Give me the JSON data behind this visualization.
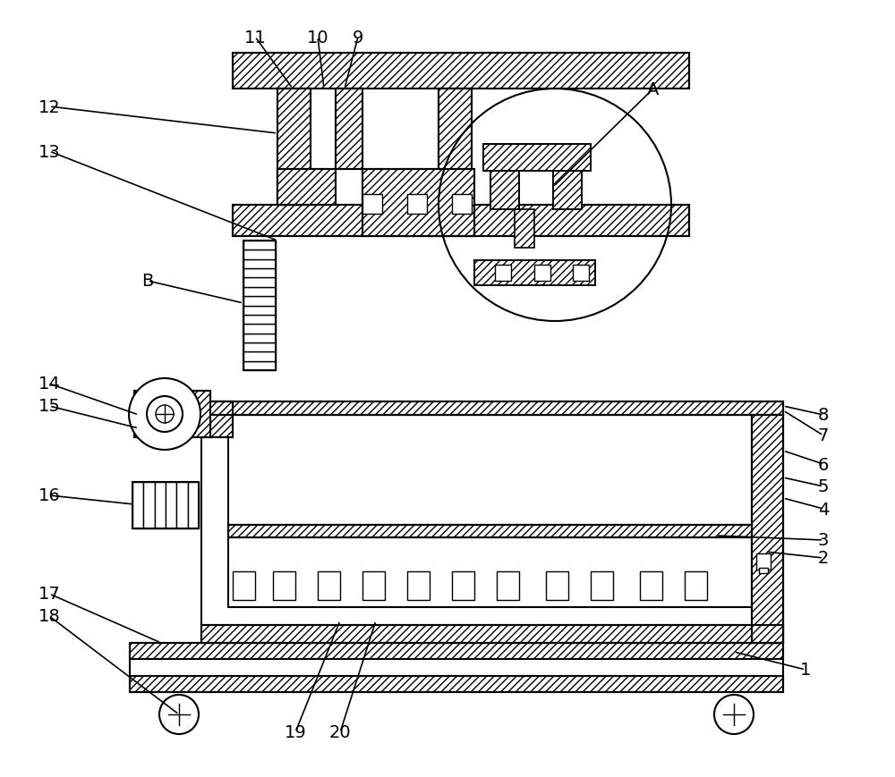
{
  "background_color": "#ffffff",
  "line_color": "#000000",
  "label_fontsize": 14,
  "leaders": [
    [
      "8",
      920,
      405,
      875,
      415
    ],
    [
      "7",
      920,
      382,
      875,
      410
    ],
    [
      "6",
      920,
      350,
      875,
      365
    ],
    [
      "5",
      920,
      325,
      875,
      335
    ],
    [
      "4",
      920,
      300,
      875,
      312
    ],
    [
      "3",
      920,
      265,
      800,
      270
    ],
    [
      "2",
      920,
      245,
      855,
      252
    ],
    [
      "1",
      900,
      120,
      820,
      140
    ],
    [
      "9",
      400,
      828,
      385,
      770
    ],
    [
      "10",
      355,
      828,
      362,
      770
    ],
    [
      "11",
      285,
      828,
      327,
      770
    ],
    [
      "12",
      55,
      750,
      310,
      720
    ],
    [
      "13",
      55,
      700,
      310,
      600
    ],
    [
      "14",
      55,
      440,
      155,
      405
    ],
    [
      "15",
      55,
      415,
      155,
      390
    ],
    [
      "16",
      55,
      315,
      150,
      305
    ],
    [
      "17",
      55,
      205,
      180,
      150
    ],
    [
      "18",
      55,
      180,
      200,
      70
    ],
    [
      "19",
      330,
      50,
      380,
      175
    ],
    [
      "20",
      380,
      50,
      420,
      175
    ],
    [
      "A",
      730,
      770,
      618,
      660
    ],
    [
      "B",
      165,
      555,
      272,
      530
    ]
  ]
}
